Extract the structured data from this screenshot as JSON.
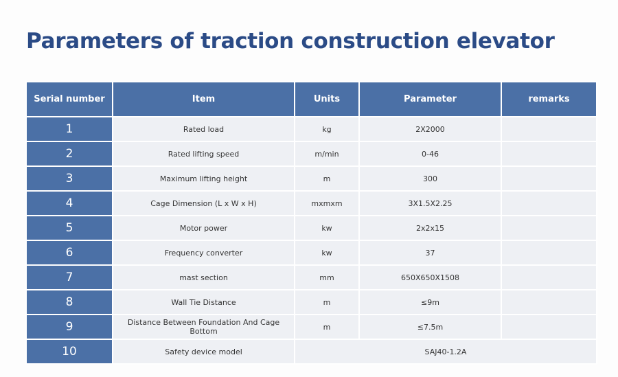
{
  "title": "Parameters of traction construction elevator",
  "table": {
    "header": [
      "Serial number",
      "Item",
      "Units",
      "Parameter",
      "remarks"
    ],
    "rows": [
      {
        "serial": 1,
        "item": "Rated load",
        "units": "kg",
        "parameter": "2X2000"
      },
      {
        "serial": 2,
        "item": "Rated lifting speed",
        "units": "m/min",
        "parameter": "0-46"
      },
      {
        "serial": 3,
        "item": "Maximum lifting height",
        "units": "m",
        "parameter": "300"
      },
      {
        "serial": 4,
        "item": "Cage Dimension (L x W x H)",
        "units": "mxmxm",
        "parameter": "3X1.5X2.25"
      },
      {
        "serial": 5,
        "item": "Motor power",
        "units": "kw",
        "parameter": "2x2x15"
      },
      {
        "serial": 6,
        "item": "Frequency converter",
        "units": "kw",
        "parameter": "37"
      },
      {
        "serial": 7,
        "item": "mast section",
        "units": "mm",
        "parameter": "650X650X1508"
      },
      {
        "serial": 8,
        "item": "Wall Tie Distance",
        "units": "m",
        "parameter": "≤9m"
      },
      {
        "serial": 9,
        "item": "Distance Between Foundation And Cage Bottom",
        "units": "m",
        "parameter": "≤7.5m"
      },
      {
        "serial": 10,
        "item": "Safety device model",
        "parameter": "SAJ40-1.2A"
      }
    ]
  }
}
